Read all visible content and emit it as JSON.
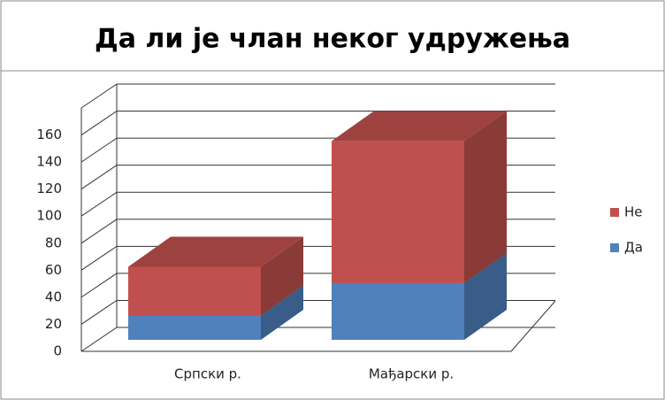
{
  "chart_data": {
    "type": "bar3d_stacked",
    "title": "Да ли је члан неког удружења",
    "categories": [
      "Српски р.",
      "Мађарски р."
    ],
    "series": [
      {
        "name": "Да",
        "color": "#4f81bd",
        "values": [
          18,
          42
        ]
      },
      {
        "name": "Не",
        "color": "#c0504d",
        "values": [
          36,
          105
        ]
      }
    ],
    "ylim": [
      0,
      180
    ],
    "yticks": [
      0,
      20,
      40,
      60,
      80,
      100,
      120,
      140,
      160
    ],
    "grid": true,
    "legend": "right"
  }
}
